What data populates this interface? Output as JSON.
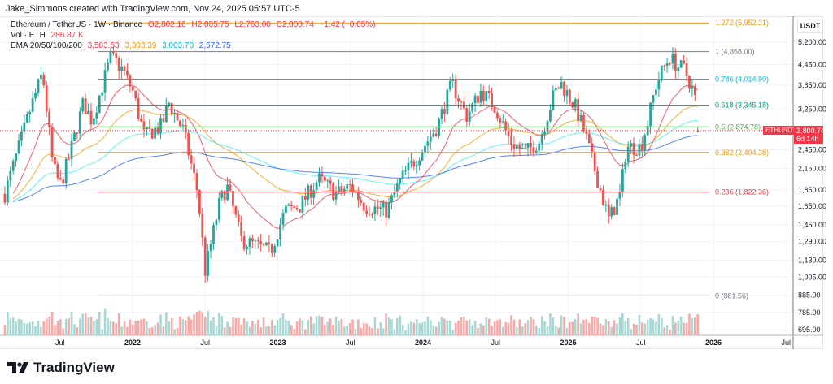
{
  "credit": "Jake_Simmons created with TradingView.com, Nov 24, 2025 05:57 UTC-5",
  "legend": {
    "symbol": "Ethereum / TetherUS · 1W · Binance",
    "o": "O2,802.16",
    "h": "H2,885.75",
    "l": "L2,763.00",
    "c": "C2,800.74",
    "chg": "−1.42 (−0.05%)",
    "vol_label": "Vol · ETH",
    "vol_value": "286.87 K",
    "ema_label": "EMA 20/50/100/200",
    "ema_values": [
      "3,583.53",
      "3,303.39",
      "3,003.70",
      "2,572.75"
    ]
  },
  "colors": {
    "up": "#26a69a",
    "down": "#ef5350",
    "ema20": "#f23645",
    "ema50": "#ff9800",
    "ema100": "#00e5ff",
    "ema200": "#2962ff"
  },
  "price_axis": {
    "unit": "USDT",
    "ticks": [
      "5,200.00",
      "4,450.00",
      "3,850.00",
      "3,250.00",
      "2,450.00",
      "2,150.00",
      "1,850.00",
      "1,650.00",
      "1,450.00",
      "1,290.00",
      "1,130.00",
      "1,005.00",
      "885.00",
      "785.00",
      "695.00"
    ],
    "scale": "log"
  },
  "time_axis": {
    "ticks": [
      "Jul",
      "2022",
      "Jul",
      "2023",
      "Jul",
      "2024",
      "Jul",
      "2025",
      "Jul",
      "2026",
      "Jul"
    ]
  },
  "last_price": {
    "symbol": "ETHUSDT",
    "price": "2,800.74",
    "countdown": "6d 14h"
  },
  "fib": [
    {
      "label": "1.272 (5,952.31)",
      "value": 5952.31,
      "color": "#ff9800"
    },
    {
      "label": "1 (4,868.00)",
      "value": 4868,
      "color": "#787b86"
    },
    {
      "label": "0.786 (4,014.90)",
      "value": 4014.9,
      "color": "#00bcd4"
    },
    {
      "label": "0.618 (3,345.18)",
      "value": 3345.18,
      "color": "#089981"
    },
    {
      "label": "0.5 (2,874.78)",
      "value": 2874.78,
      "color": "#4caf50"
    },
    {
      "label": "0.382 (2,404.38)",
      "value": 2404.38,
      "color": "#ff9800"
    },
    {
      "label": "0.236 (1,822.36)",
      "value": 1822.36,
      "color": "#f23645"
    },
    {
      "label": "0 (881.56)",
      "value": 881.56,
      "color": "#787b86"
    }
  ],
  "chart_data": {
    "type": "candlestick",
    "title": "Ethereum / TetherUS · 1W · Binance",
    "yscale": "log",
    "ylim": [
      650,
      6200
    ],
    "xlim": [
      2021.1,
      2026.6
    ],
    "price_path": [
      [
        2021.12,
        1800
      ],
      [
        2021.3,
        3300
      ],
      [
        2021.38,
        4200
      ],
      [
        2021.45,
        2200
      ],
      [
        2021.5,
        1900
      ],
      [
        2021.56,
        2300
      ],
      [
        2021.66,
        3400
      ],
      [
        2021.72,
        3000
      ],
      [
        2021.85,
        4700
      ],
      [
        2021.93,
        4300
      ],
      [
        2022.0,
        3700
      ],
      [
        2022.08,
        2700
      ],
      [
        2022.2,
        2900
      ],
      [
        2022.25,
        3400
      ],
      [
        2022.35,
        2800
      ],
      [
        2022.45,
        1800
      ],
      [
        2022.5,
        1050
      ],
      [
        2022.6,
        1700
      ],
      [
        2022.65,
        1900
      ],
      [
        2022.75,
        1300
      ],
      [
        2022.85,
        1250
      ],
      [
        2022.95,
        1200
      ],
      [
        2023.05,
        1600
      ],
      [
        2023.15,
        1650
      ],
      [
        2023.28,
        2000
      ],
      [
        2023.4,
        1800
      ],
      [
        2023.5,
        1900
      ],
      [
        2023.6,
        1650
      ],
      [
        2023.75,
        1600
      ],
      [
        2023.85,
        2000
      ],
      [
        2023.95,
        2300
      ],
      [
        2024.1,
        2900
      ],
      [
        2024.2,
        3900
      ],
      [
        2024.3,
        3100
      ],
      [
        2024.4,
        3700
      ],
      [
        2024.5,
        3300
      ],
      [
        2024.6,
        2600
      ],
      [
        2024.7,
        2400
      ],
      [
        2024.8,
        2600
      ],
      [
        2024.9,
        3600
      ],
      [
        2024.95,
        3900
      ],
      [
        2025.05,
        3300
      ],
      [
        2025.12,
        2700
      ],
      [
        2025.2,
        2000
      ],
      [
        2025.28,
        1500
      ],
      [
        2025.36,
        1800
      ],
      [
        2025.4,
        2500
      ],
      [
        2025.5,
        2500
      ],
      [
        2025.55,
        3000
      ],
      [
        2025.6,
        3800
      ],
      [
        2025.65,
        4300
      ],
      [
        2025.7,
        4700
      ],
      [
        2025.75,
        4400
      ],
      [
        2025.8,
        4300
      ],
      [
        2025.85,
        3800
      ],
      [
        2025.88,
        3400
      ],
      [
        2025.9,
        2800
      ]
    ],
    "last": {
      "open": 2802.16,
      "high": 2885.75,
      "low": 2763.0,
      "close": 2800.74,
      "volume": "286.87 K"
    }
  }
}
